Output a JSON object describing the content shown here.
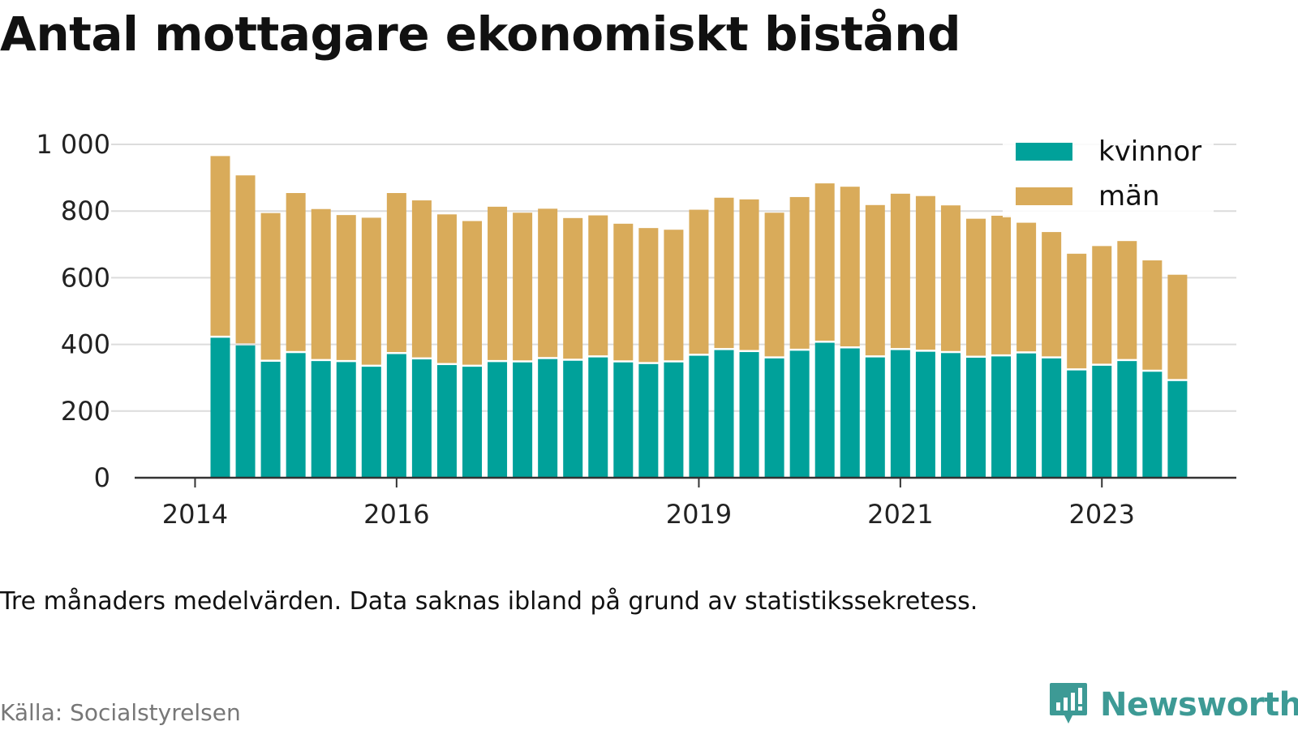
{
  "title": "Antal mottagare ekonomiskt bistånd",
  "note": "Tre månaders medelvärden. Data saknas ibland på grund av statistikssekretess.",
  "source": "Källa: Socialstyrelsen",
  "brand": "Newsworthy",
  "colors": {
    "kvinnor": "#00a19a",
    "man": "#d9ab5a",
    "brand": "#3d9a95"
  },
  "chart_data": {
    "type": "bar",
    "stacked": true,
    "title": "Antal mottagare ekonomiskt bistånd",
    "xlabel": "",
    "ylabel": "",
    "ylim": [
      0,
      1000
    ],
    "yticks": [
      0,
      200,
      400,
      600,
      800,
      1000
    ],
    "ytick_labels": [
      "0",
      "200",
      "400",
      "600",
      "800",
      "1 000"
    ],
    "xtick_labels": [
      "2014",
      "2016",
      "2019",
      "2021",
      "2023"
    ],
    "grid": true,
    "legend": "top-right",
    "categories": [
      "2014-Q2",
      "2014-Q3",
      "2014-Q4",
      "2015-Q1",
      "2015-Q2",
      "2015-Q3",
      "2015-Q4",
      "2016-Q1",
      "2016-Q2",
      "2016-Q3",
      "2016-Q4",
      "2017-Q1",
      "2017-Q2",
      "2017-Q3",
      "2017-Q4",
      "2018-Q1",
      "2018-Q2",
      "2018-Q3",
      "2018-Q4",
      "2019-Q1",
      "2019-Q2",
      "2019-Q3",
      "2019-Q4",
      "2020-Q1",
      "2020-Q2",
      "2020-Q3",
      "2020-Q4",
      "2021-Q1",
      "2021-Q2",
      "2021-Q3",
      "2021-Q4",
      "2022-Q1",
      "2022-Q2",
      "2022-Q3",
      "2022-Q4",
      "2023-Q1",
      "2023-Q2",
      "2023-Q3",
      "2023-Q4"
    ],
    "series": [
      {
        "name": "kvinnor",
        "values": [
          420,
          397,
          348,
          374,
          350,
          347,
          333,
          371,
          355,
          338,
          333,
          347,
          346,
          356,
          351,
          361,
          346,
          341,
          346,
          366,
          383,
          377,
          358,
          381,
          405,
          388,
          361,
          383,
          378,
          374,
          360,
          364,
          373,
          358,
          322,
          336,
          350,
          318,
          290
        ]
      },
      {
        "name": "män",
        "values": [
          545,
          510,
          446,
          480,
          456,
          441,
          447,
          483,
          477,
          452,
          437,
          466,
          449,
          451,
          428,
          426,
          416,
          408,
          398,
          438,
          457,
          458,
          437,
          461,
          478,
          485,
          457,
          469,
          467,
          443,
          417,
          422,
          392,
          379,
          350,
          359,
          360,
          334,
          319
        ]
      }
    ]
  }
}
